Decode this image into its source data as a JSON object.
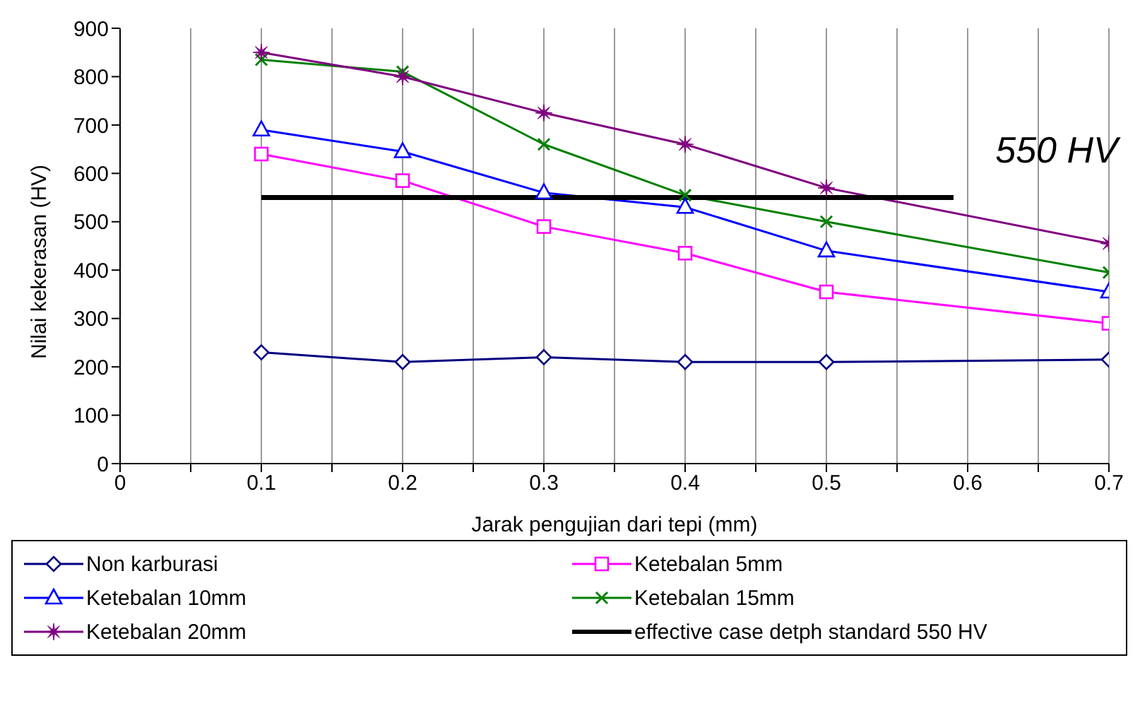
{
  "chart_data": {
    "type": "line",
    "xlabel": "Jarak pengujian dari tepi (mm)",
    "ylabel": "Nilai kekerasan (HV)",
    "x": [
      0.1,
      0.2,
      0.3,
      0.4,
      0.5,
      0.7
    ],
    "xlim": [
      0,
      0.7
    ],
    "xticks": [
      0,
      {
        "value": 0.05,
        "label": null
      },
      0.1,
      {
        "value": 0.15,
        "label": null
      },
      0.2,
      {
        "value": 0.25,
        "label": null
      },
      0.3,
      {
        "value": 0.35,
        "label": null
      },
      0.4,
      {
        "value": 0.45,
        "label": null
      },
      0.5,
      {
        "value": 0.55,
        "label": null
      },
      0.6,
      {
        "value": 0.65,
        "label": null
      },
      0.7
    ],
    "ylim": [
      0,
      900
    ],
    "yticks": [
      0,
      100,
      200,
      300,
      400,
      500,
      600,
      700,
      800,
      900
    ],
    "grid": "x",
    "legend": "bottom",
    "series": [
      {
        "name": "Non karburasi",
        "color": "#000080",
        "marker": "diamond",
        "values": [
          230,
          210,
          220,
          210,
          210,
          215
        ]
      },
      {
        "name": "Ketebalan 5mm",
        "color": "#ff00ff",
        "marker": "square",
        "values": [
          640,
          585,
          490,
          435,
          355,
          290
        ]
      },
      {
        "name": "Ketebalan 10mm",
        "color": "#0000ff",
        "marker": "triangle",
        "values": [
          690,
          645,
          560,
          530,
          440,
          355
        ]
      },
      {
        "name": "Ketebalan 15mm",
        "color": "#008000",
        "marker": "cross",
        "values": [
          835,
          810,
          660,
          555,
          500,
          395
        ]
      },
      {
        "name": "Ketebalan 20mm",
        "color": "#800080",
        "marker": "star",
        "values": [
          850,
          800,
          725,
          660,
          570,
          455
        ]
      },
      {
        "name": "effective case detph standard 550 HV",
        "color": "#000000",
        "marker": "none",
        "x": [
          0.1,
          0.59
        ],
        "values": [
          550,
          550
        ]
      }
    ],
    "annotations": [
      "550 HV"
    ]
  }
}
